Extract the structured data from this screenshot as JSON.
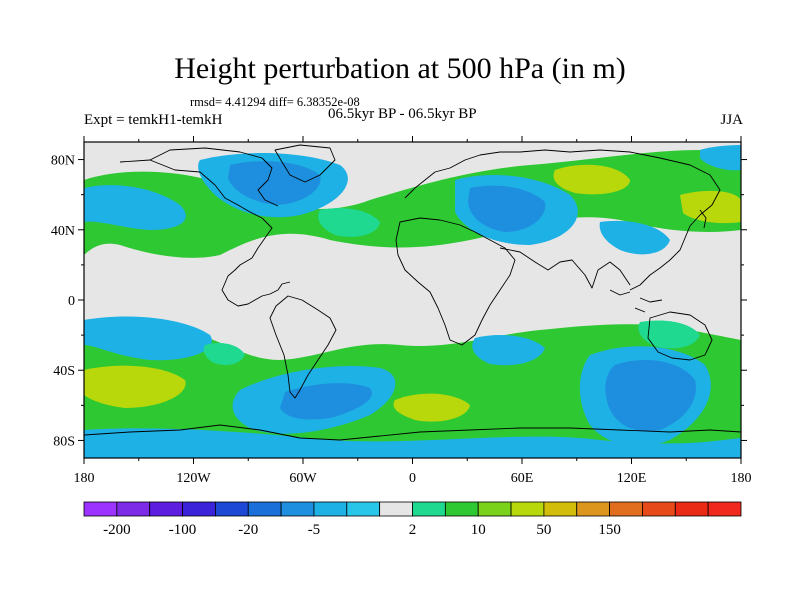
{
  "title": "Height perturbation at 500 hPa (in m)",
  "stats_line": "rmsd= 4.41294 diff= 6.38352e-08",
  "left_label": "Expt = temkH1-temkH",
  "center_label": "06.5kyr BP - 06.5kyr BP",
  "right_label": "JJA",
  "map": {
    "projection": "cylindrical equidistant",
    "lon_range": [
      -180,
      180
    ],
    "lat_range": [
      -90,
      90
    ],
    "background_color": "#e6e6e6",
    "lat_ticks": [
      {
        "label": "80N",
        "lat": 80
      },
      {
        "label": "40N",
        "lat": 40
      },
      {
        "label": "0",
        "lat": 0
      },
      {
        "label": "40S",
        "lat": -40
      },
      {
        "label": "80S",
        "lat": -80
      }
    ],
    "lon_ticks": [
      {
        "label": "180",
        "lon": -180
      },
      {
        "label": "120W",
        "lon": -120
      },
      {
        "label": "60W",
        "lon": -60
      },
      {
        "label": "0",
        "lon": 0
      },
      {
        "label": "60E",
        "lon": 60
      },
      {
        "label": "120E",
        "lon": 120
      },
      {
        "label": "180",
        "lon": 180
      }
    ]
  },
  "colorbar": {
    "colors": [
      "#9c33ff",
      "#7d2be6",
      "#5d1ee0",
      "#3a23d8",
      "#1d48d6",
      "#1a6fd9",
      "#1e8fde",
      "#1eb1e6",
      "#28c6e8",
      "#e6e6e6",
      "#1ed98f",
      "#2ec832",
      "#7bd21a",
      "#b8d80c",
      "#d2be0a",
      "#dc961e",
      "#e06e1e",
      "#e64a19",
      "#ea2a14",
      "#f0281e"
    ],
    "labels": [
      {
        "text": "-200",
        "index": 1
      },
      {
        "text": "-100",
        "index": 3
      },
      {
        "text": "-20",
        "index": 5
      },
      {
        "text": "-5",
        "index": 7
      },
      {
        "text": "2",
        "index": 10
      },
      {
        "text": "10",
        "index": 12
      },
      {
        "text": "50",
        "index": 14
      },
      {
        "text": "150",
        "index": 16
      }
    ]
  },
  "colors": {
    "level_blue_light": "#1eb1e6",
    "level_blue_mid": "#1e8fde",
    "level_blue_dark": "#1a6fd9",
    "level_teal": "#1ed98f",
    "level_green": "#2ec832",
    "level_yellowgreen": "#b8d80c"
  }
}
